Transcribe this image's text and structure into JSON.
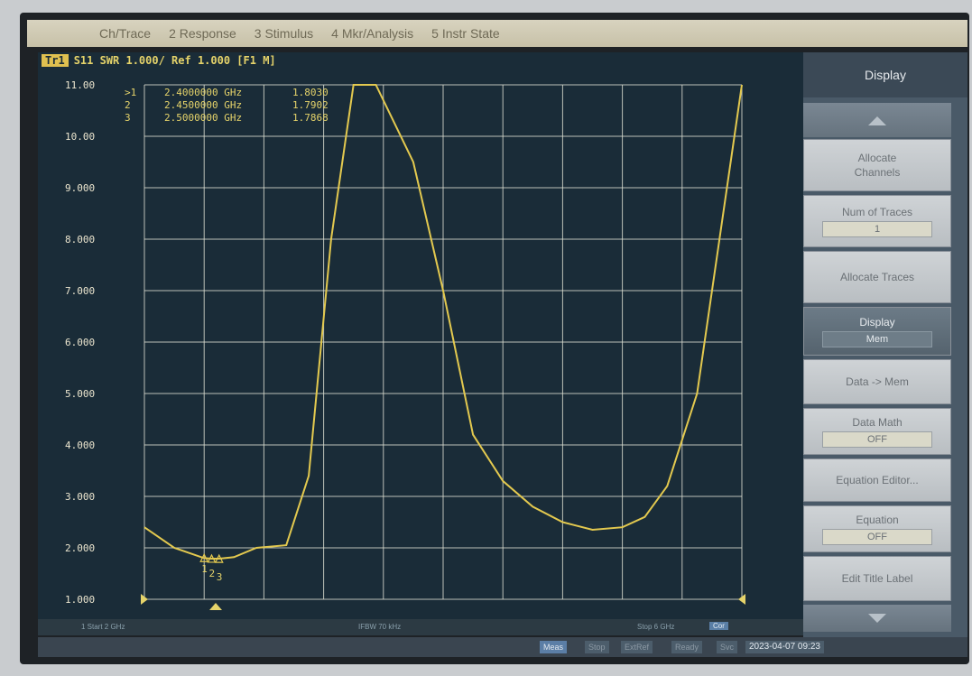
{
  "menu": {
    "items": [
      "Ch/Trace",
      "2 Response",
      "3 Stimulus",
      "4 Mkr/Analysis",
      "5 Instr State"
    ]
  },
  "trace": {
    "title": "S11 SWR 1.000/ Ref 1.000 [F1 M]",
    "channel_tag": "Tr1"
  },
  "markers": {
    "readout": [
      {
        "id": ">1",
        "freq": "2.4000000 GHz",
        "value": "1.8030"
      },
      {
        "id": "2",
        "freq": "2.4500000 GHz",
        "value": "1.7902"
      },
      {
        "id": "3",
        "freq": "2.5000000 GHz",
        "value": "1.7868"
      }
    ],
    "marker_labels": [
      "1",
      "2",
      "3"
    ]
  },
  "chart_data": {
    "type": "line",
    "title": "S11 SWR 1.000/ Ref 1.000 [F1 M]",
    "x_range_ghz": [
      2,
      6
    ],
    "ylim": [
      1.0,
      11.0
    ],
    "y_ticks": [
      "11.00",
      "10.00",
      "9.000",
      "8.000",
      "7.000",
      "6.000",
      "5.000",
      "4.000",
      "3.000",
      "2.000",
      "1.000"
    ],
    "grid": true,
    "series": [
      {
        "name": "S11",
        "x": [
          2.0,
          2.2,
          2.4,
          2.45,
          2.5,
          2.6,
          2.75,
          2.95,
          3.1,
          3.25,
          3.4,
          3.55,
          3.8,
          4.0,
          4.2,
          4.4,
          4.6,
          4.8,
          5.0,
          5.2,
          5.35,
          5.5,
          5.7,
          5.85,
          6.0
        ],
        "y": [
          2.4,
          2.0,
          1.8,
          1.79,
          1.79,
          1.82,
          2.0,
          2.05,
          3.4,
          8.0,
          11.0,
          11.0,
          9.5,
          7.0,
          4.2,
          3.3,
          2.8,
          2.5,
          2.35,
          2.4,
          2.6,
          3.2,
          5.0,
          8.0,
          11.0
        ]
      }
    ],
    "markers": [
      {
        "x": 2.4,
        "y": 1.803
      },
      {
        "x": 2.45,
        "y": 1.7902
      },
      {
        "x": 2.5,
        "y": 1.7868
      }
    ]
  },
  "status": {
    "start": "1 Start 2 GHz",
    "ifbw": "IFBW 70 kHz",
    "stop": "Stop 6 GHz",
    "cor": "Cor"
  },
  "bottom": {
    "meas": "Meas",
    "stop": "Stop",
    "extref": "ExtRef",
    "ready": "Ready",
    "svc": "Svc",
    "datetime": "2023-04-07 09:23"
  },
  "panel": {
    "header": "Display",
    "allocate_channels": "Allocate Channels",
    "num_of_traces": {
      "label": "Num of Traces",
      "value": "1"
    },
    "allocate_traces": "Allocate Traces",
    "display": {
      "label": "Display",
      "value": "Mem"
    },
    "data_to_mem": "Data -> Mem",
    "data_math": {
      "label": "Data Math",
      "value": "OFF"
    },
    "equation_editor": "Equation Editor...",
    "equation": {
      "label": "Equation",
      "value": "OFF"
    },
    "edit_title_label": "Edit Title Label"
  },
  "colors": {
    "trace": "#e3c94f",
    "grid": "#d9dccf",
    "background": "#1a2c38",
    "text": "#e5d36a"
  }
}
